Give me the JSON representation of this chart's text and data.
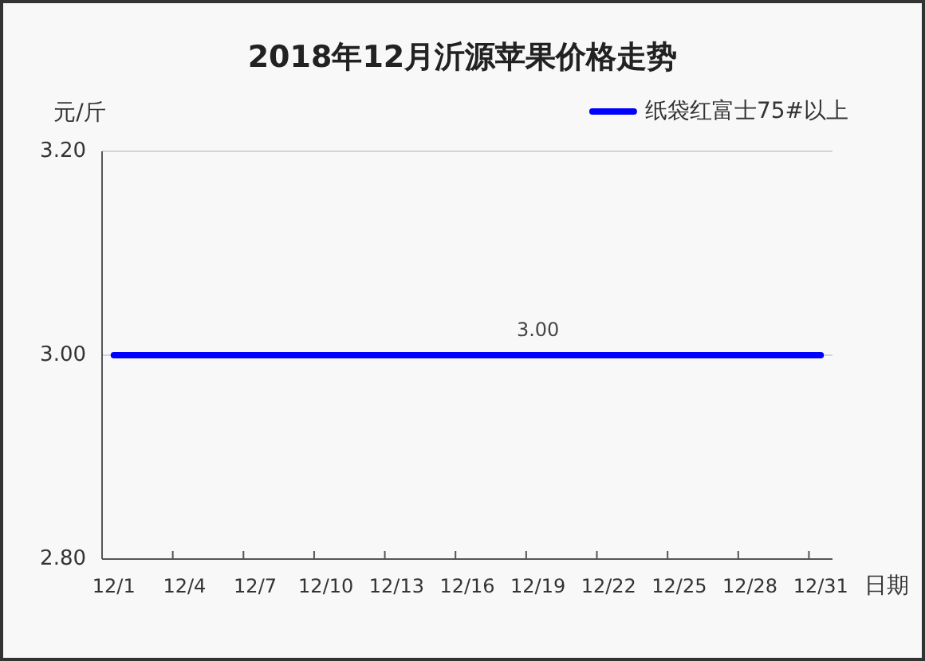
{
  "chart_data": {
    "type": "line",
    "title": "2018年12月沂源苹果价格走势",
    "ylabel": "元/斤",
    "xlabel": "日期",
    "categories": [
      "12/1",
      null,
      null,
      "12/4",
      null,
      null,
      "12/7",
      null,
      null,
      "12/10",
      null,
      null,
      "12/13",
      null,
      null,
      "12/16",
      null,
      null,
      "12/19",
      null,
      null,
      "12/22",
      null,
      null,
      "12/25",
      null,
      null,
      "12/28",
      null,
      null,
      "12/31"
    ],
    "series": [
      {
        "name": "纸袋红富士75#以上",
        "color": "#0000ff",
        "values": [
          3.0,
          3.0,
          3.0,
          3.0,
          3.0,
          3.0,
          3.0,
          3.0,
          3.0,
          3.0,
          3.0,
          3.0,
          3.0,
          3.0,
          3.0,
          3.0,
          3.0,
          3.0,
          3.0,
          3.0,
          3.0,
          3.0,
          3.0,
          3.0,
          3.0,
          3.0,
          3.0,
          3.0,
          3.0,
          3.0,
          3.0
        ],
        "value_labels": [
          null,
          null,
          null,
          null,
          null,
          null,
          null,
          null,
          null,
          null,
          null,
          null,
          null,
          null,
          null,
          null,
          null,
          null,
          "3.00",
          null,
          null,
          null,
          null,
          null,
          null,
          null,
          null,
          null,
          null,
          null,
          null
        ]
      }
    ],
    "ylim": [
      2.8,
      3.2
    ],
    "yticks": [
      {
        "value": 2.8,
        "label": "2.80"
      },
      {
        "value": 3.0,
        "label": "3.00"
      },
      {
        "value": 3.2,
        "label": "3.20"
      }
    ],
    "grid": "y",
    "legend": "top right"
  }
}
